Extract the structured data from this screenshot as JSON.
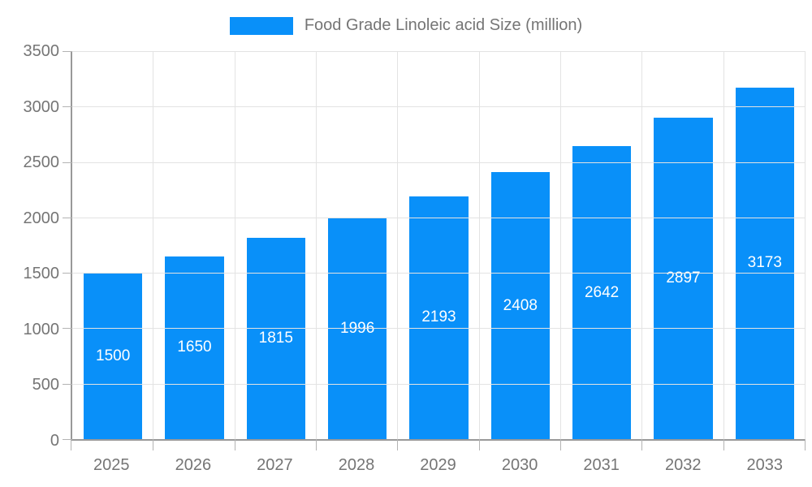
{
  "legend": {
    "label": "Food Grade Linoleic acid Size (million)"
  },
  "colors": {
    "bar": "#0990f9",
    "axis": "#999999",
    "grid": "#e3e3e3",
    "tick": "#b3b3b3",
    "axis_text": "#757575",
    "value_text": "#ffffff"
  },
  "chart_data": {
    "type": "bar",
    "title": "Food Grade Linoleic acid Size (million)",
    "categories": [
      "2025",
      "2026",
      "2027",
      "2028",
      "2029",
      "2030",
      "2031",
      "2032",
      "2033"
    ],
    "values": [
      1500,
      1650,
      1815,
      1996,
      2193,
      2408,
      2642,
      2897,
      3173
    ],
    "series": [
      {
        "name": "Food Grade Linoleic acid Size (million)",
        "values": [
          1500,
          1650,
          1815,
          1996,
          2193,
          2408,
          2642,
          2897,
          3173
        ]
      }
    ],
    "xlabel": "",
    "ylabel": "",
    "ylim": [
      0,
      3500
    ],
    "yticks": [
      0,
      500,
      1000,
      1500,
      2000,
      2500,
      3000,
      3500
    ],
    "grid": true,
    "grid_vertical": true,
    "legend_position": "top-center",
    "bar_labels": "centered-inside-white"
  }
}
